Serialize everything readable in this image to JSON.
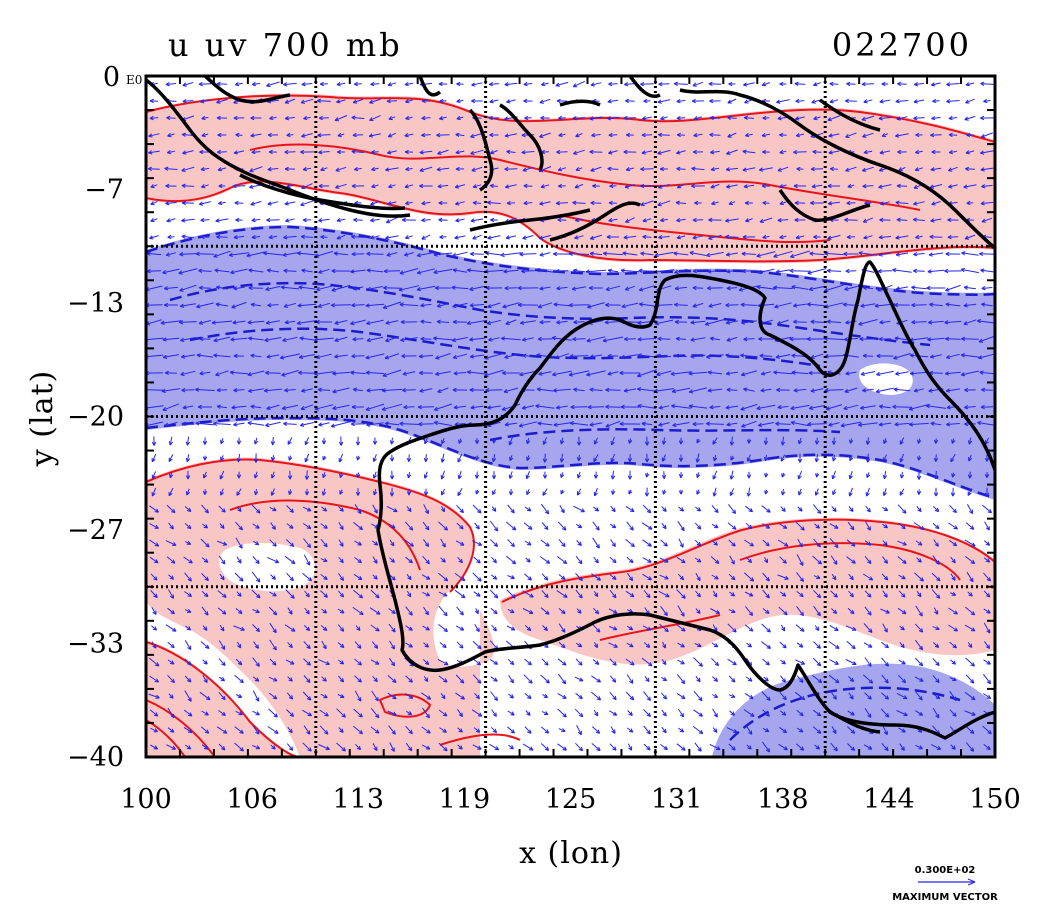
{
  "title": {
    "left": "u uv 700 mb",
    "right": "022700"
  },
  "corner_label": {
    "value": "0",
    "suffix": "E0"
  },
  "x_axis": {
    "label": "x (lon)",
    "ticks": [
      "100",
      "106",
      "113",
      "119",
      "125",
      "131",
      "138",
      "144",
      "150"
    ]
  },
  "y_axis": {
    "label": "y (lat)",
    "ticks": [
      "-7",
      "-13",
      "-20",
      "-27",
      "-33",
      "-40"
    ]
  },
  "legend": {
    "vector_value": "0.300E+02",
    "vector_label": "MAXIMUM VECTOR"
  },
  "colors": {
    "positive_fill": "#f9c6c6",
    "positive_line": "#e8141c",
    "negative_fill": "#a6a6ef",
    "negative_line": "#1c1ccc",
    "vector": "#2626ee",
    "coast": "#000000"
  },
  "map": {
    "lon_range": [
      100,
      150
    ],
    "lat_range": [
      -40,
      0
    ],
    "grid_lons": [
      110,
      120,
      130,
      140
    ],
    "grid_lats": [
      -10,
      -20,
      -30
    ]
  }
}
